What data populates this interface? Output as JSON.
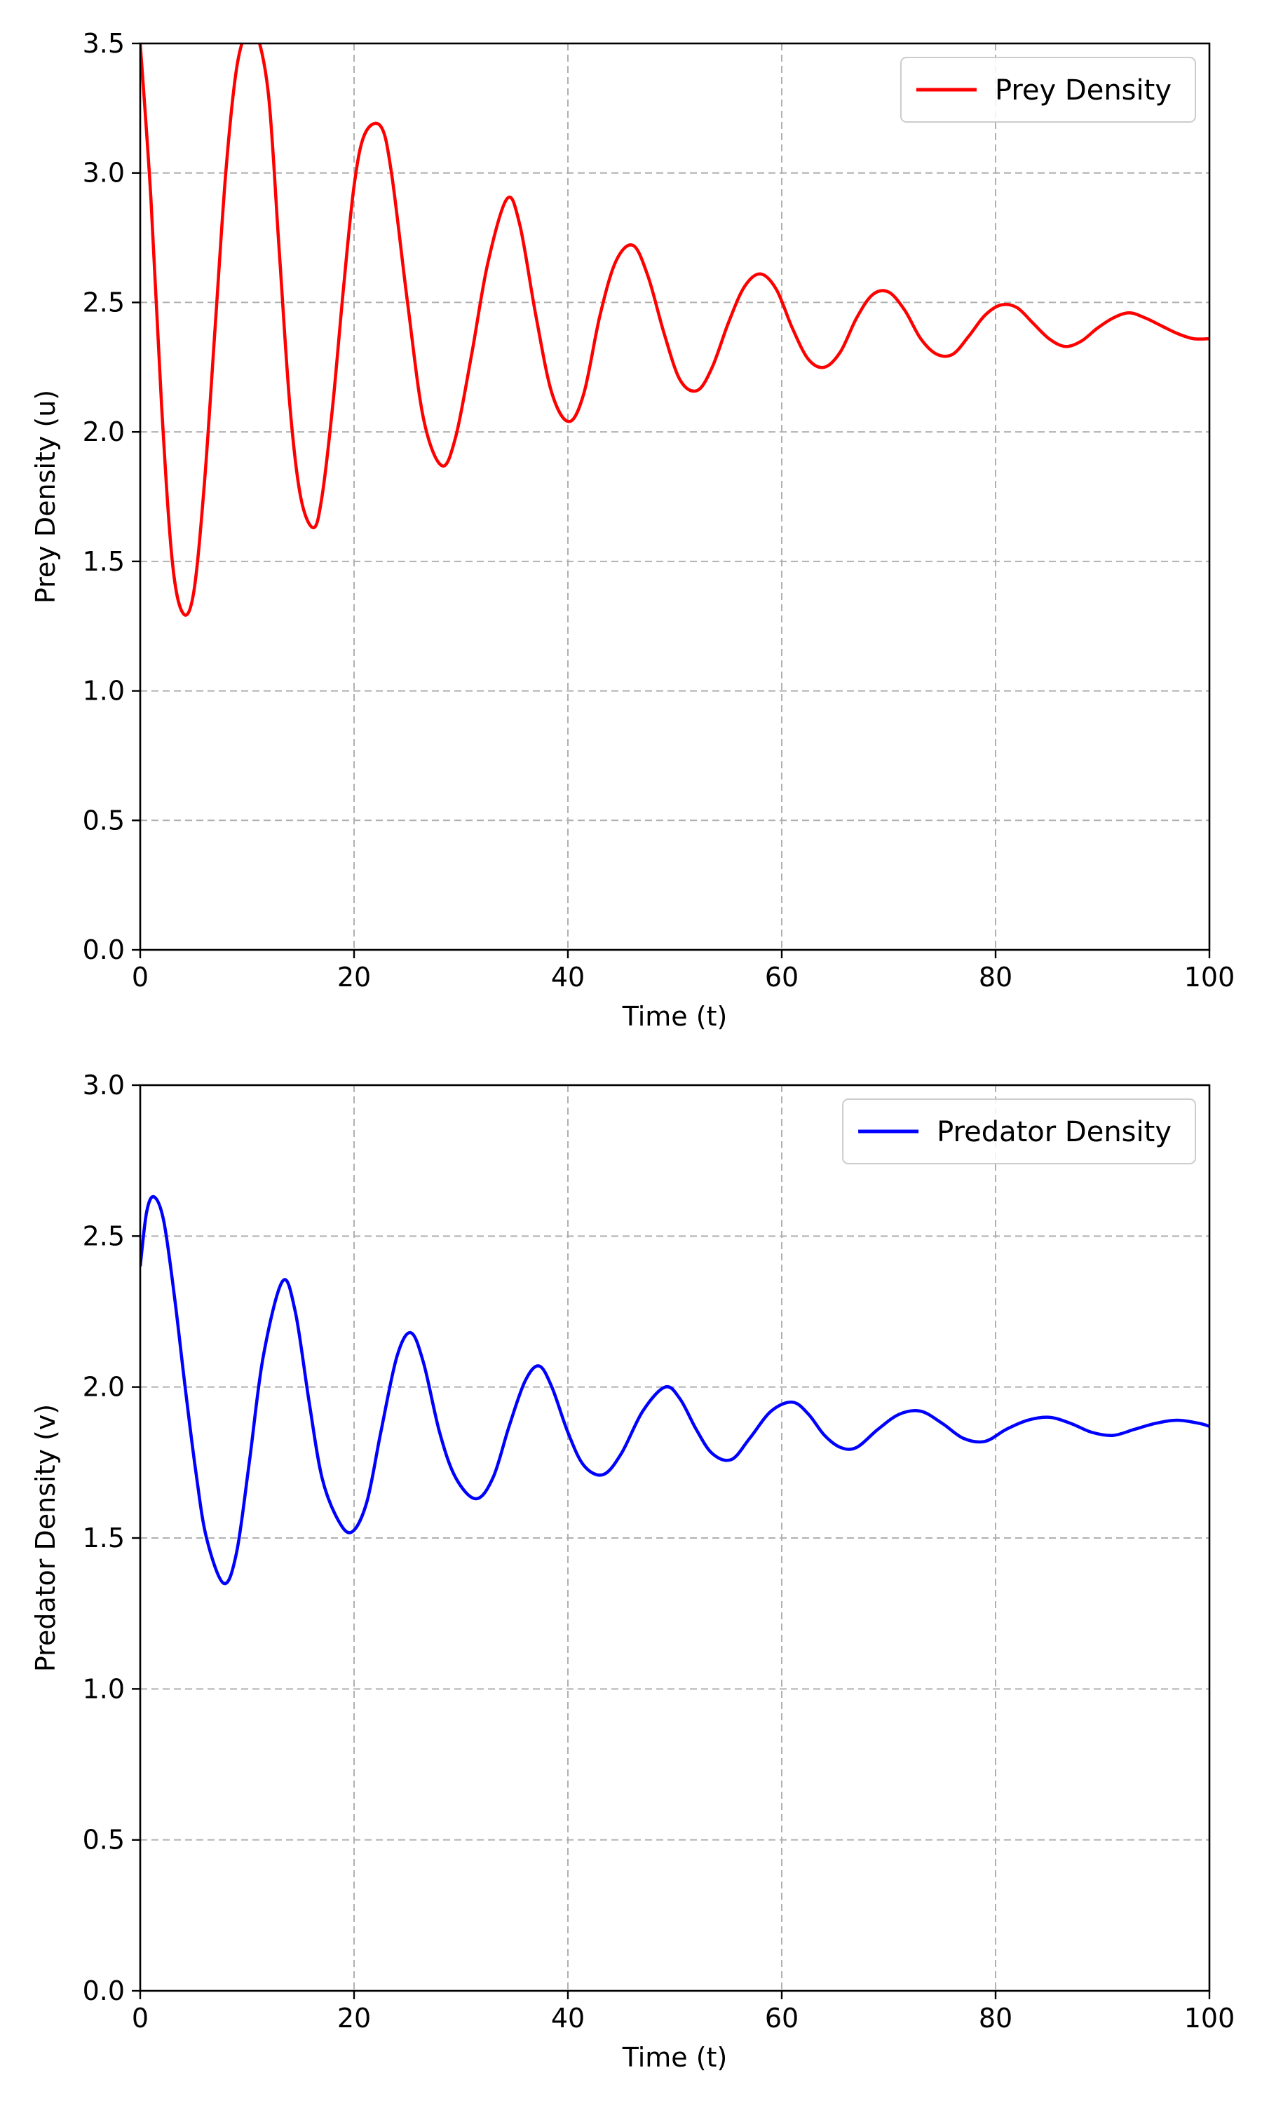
{
  "chart_data": [
    {
      "type": "line",
      "xlabel": "Time (t)",
      "ylabel": "Prey Density (u)",
      "xlim": [
        0,
        100
      ],
      "ylim": [
        0,
        3.5
      ],
      "xticks": [
        "0",
        "20",
        "40",
        "60",
        "80",
        "100"
      ],
      "yticks": [
        "0.0",
        "0.5",
        "1.0",
        "1.5",
        "2.0",
        "2.5",
        "3.0",
        "3.5"
      ],
      "grid": true,
      "legend_position": "top-right",
      "series": [
        {
          "name": "Prey Density",
          "color": "#ff0000",
          "x": [
            0,
            1,
            2,
            3,
            4,
            5,
            6,
            7,
            8,
            9,
            10,
            10.8,
            12,
            13,
            14,
            15,
            16.2,
            17,
            18,
            19,
            20,
            21,
            22.5,
            23.5,
            25,
            26.5,
            28.2,
            29.5,
            31,
            32.5,
            34.3,
            35.5,
            37,
            38.5,
            40.1,
            41.5,
            43,
            44.5,
            46.1,
            47.5,
            49,
            50.5,
            52.1,
            53.5,
            55,
            56.5,
            58,
            59.5,
            61,
            62.5,
            64,
            65.5,
            67,
            68.5,
            70,
            71.5,
            73,
            74.5,
            76,
            77.5,
            79,
            80.5,
            82,
            83.5,
            85,
            86.5,
            88,
            89.5,
            91,
            92.5,
            94,
            95.5,
            97,
            98.5,
            100
          ],
          "y": [
            3.5,
            2.9,
            2.1,
            1.5,
            1.3,
            1.38,
            1.8,
            2.4,
            3.0,
            3.4,
            3.55,
            3.55,
            3.3,
            2.7,
            2.1,
            1.75,
            1.63,
            1.75,
            2.1,
            2.55,
            2.95,
            3.15,
            3.18,
            3.0,
            2.5,
            2.05,
            1.87,
            1.98,
            2.3,
            2.65,
            2.9,
            2.8,
            2.45,
            2.15,
            2.04,
            2.15,
            2.45,
            2.66,
            2.72,
            2.6,
            2.38,
            2.2,
            2.16,
            2.25,
            2.42,
            2.56,
            2.61,
            2.55,
            2.4,
            2.28,
            2.25,
            2.31,
            2.44,
            2.53,
            2.54,
            2.47,
            2.36,
            2.3,
            2.3,
            2.37,
            2.45,
            2.49,
            2.48,
            2.42,
            2.36,
            2.33,
            2.35,
            2.4,
            2.44,
            2.46,
            2.44,
            2.41,
            2.38,
            2.36,
            2.36
          ]
        }
      ]
    },
    {
      "type": "line",
      "xlabel": "Time (t)",
      "ylabel": "Predator Density (v)",
      "xlim": [
        0,
        100
      ],
      "ylim": [
        0,
        3.0
      ],
      "xticks": [
        "0",
        "20",
        "40",
        "60",
        "80",
        "100"
      ],
      "yticks": [
        "0.0",
        "0.5",
        "1.0",
        "1.5",
        "2.0",
        "2.5",
        "3.0"
      ],
      "grid": true,
      "legend_position": "top-right",
      "series": [
        {
          "name": "Predator Density",
          "color": "#0000ff",
          "x": [
            0,
            0.6,
            1.3,
            2.2,
            3.2,
            4.2,
            5.2,
            6.2,
            7.8,
            9,
            10.2,
            11.5,
            13.3,
            14.5,
            15.8,
            17,
            18.5,
            19.8,
            21.2,
            22.5,
            24,
            25.3,
            26.5,
            28,
            29.5,
            31.4,
            33,
            34.5,
            36,
            37.3,
            38.5,
            40,
            41.5,
            43.3,
            45,
            47,
            49.1,
            50.5,
            52,
            53.5,
            55.3,
            57,
            59,
            61,
            62.5,
            64,
            65.5,
            67,
            69,
            71,
            73,
            75,
            77,
            79,
            81,
            83,
            85,
            87,
            89,
            91,
            93,
            95,
            97,
            99,
            100
          ],
          "y": [
            2.4,
            2.58,
            2.63,
            2.55,
            2.3,
            2.0,
            1.72,
            1.5,
            1.35,
            1.45,
            1.75,
            2.1,
            2.35,
            2.25,
            1.95,
            1.7,
            1.56,
            1.52,
            1.62,
            1.85,
            2.1,
            2.18,
            2.08,
            1.85,
            1.7,
            1.63,
            1.7,
            1.87,
            2.02,
            2.07,
            2.0,
            1.85,
            1.74,
            1.71,
            1.78,
            1.92,
            2.0,
            1.96,
            1.86,
            1.78,
            1.76,
            1.83,
            1.92,
            1.95,
            1.91,
            1.84,
            1.8,
            1.8,
            1.86,
            1.91,
            1.92,
            1.88,
            1.83,
            1.82,
            1.86,
            1.89,
            1.9,
            1.88,
            1.85,
            1.84,
            1.86,
            1.88,
            1.89,
            1.88,
            1.87
          ]
        }
      ]
    }
  ]
}
